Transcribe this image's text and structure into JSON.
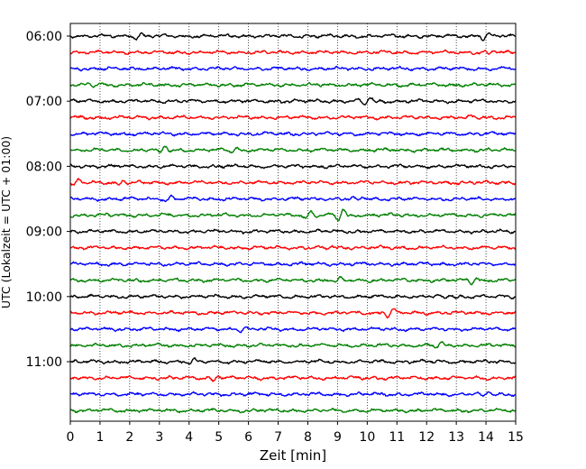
{
  "chart_data": {
    "type": "line",
    "xlabel": "Zeit  [min]",
    "ylabel": "UTC (Lokalzeit = UTC + 01:00)",
    "xlim": [
      0,
      15
    ],
    "x_ticks": [
      "0",
      "1",
      "2",
      "3",
      "4",
      "5",
      "6",
      "7",
      "8",
      "9",
      "10",
      "11",
      "12",
      "13",
      "14",
      "15"
    ],
    "y_ticks": [
      "06:00",
      "07:00",
      "08:00",
      "09:00",
      "10:00",
      "11:00"
    ],
    "y_tick_rows": [
      0,
      4,
      8,
      12,
      16,
      20
    ],
    "row_count": 24,
    "row_interval_minutes": 15,
    "grid_x": true,
    "grid_style": "dotted",
    "colors": [
      "#000000",
      "#ff0000",
      "#0000ff",
      "#008000"
    ],
    "rows": [
      {
        "start": "06:00",
        "color": "#000000",
        "events": [
          {
            "t": 2.3,
            "amp": 0.5
          },
          {
            "t": 14.0,
            "amp": 0.6
          }
        ]
      },
      {
        "start": "06:15",
        "color": "#ff0000",
        "events": [
          {
            "t": 14.2,
            "amp": 0.4
          }
        ]
      },
      {
        "start": "06:30",
        "color": "#0000ff",
        "events": []
      },
      {
        "start": "06:45",
        "color": "#008000",
        "events": [
          {
            "t": 0.9,
            "amp": 0.35
          }
        ]
      },
      {
        "start": "07:00",
        "color": "#000000",
        "events": [
          {
            "t": 10.0,
            "amp": 0.9
          }
        ]
      },
      {
        "start": "07:15",
        "color": "#ff0000",
        "events": [
          {
            "t": 13.4,
            "amp": 0.4
          }
        ]
      },
      {
        "start": "07:30",
        "color": "#0000ff",
        "events": []
      },
      {
        "start": "07:45",
        "color": "#008000",
        "events": [
          {
            "t": 3.1,
            "amp": 0.8
          },
          {
            "t": 5.5,
            "amp": 0.4
          }
        ]
      },
      {
        "start": "08:00",
        "color": "#000000",
        "events": []
      },
      {
        "start": "08:15",
        "color": "#ff0000",
        "events": [
          {
            "t": 0.2,
            "amp": 0.6
          },
          {
            "t": 1.7,
            "amp": 0.5
          }
        ]
      },
      {
        "start": "08:30",
        "color": "#0000ff",
        "events": [
          {
            "t": 3.3,
            "amp": 0.5
          },
          {
            "t": 9.8,
            "amp": 0.4
          }
        ]
      },
      {
        "start": "08:45",
        "color": "#008000",
        "events": [
          {
            "t": 8.0,
            "amp": 0.8
          },
          {
            "t": 9.1,
            "amp": 1.2
          }
        ]
      },
      {
        "start": "09:00",
        "color": "#000000",
        "events": []
      },
      {
        "start": "09:15",
        "color": "#ff0000",
        "events": [
          {
            "t": 8.7,
            "amp": 0.35
          }
        ]
      },
      {
        "start": "09:30",
        "color": "#0000ff",
        "events": []
      },
      {
        "start": "09:45",
        "color": "#008000",
        "events": [
          {
            "t": 9.0,
            "amp": 0.5
          },
          {
            "t": 13.6,
            "amp": 0.6
          }
        ]
      },
      {
        "start": "10:00",
        "color": "#000000",
        "events": [
          {
            "t": 12.7,
            "amp": 0.5
          }
        ]
      },
      {
        "start": "10:15",
        "color": "#ff0000",
        "events": [
          {
            "t": 10.8,
            "amp": 0.8
          }
        ]
      },
      {
        "start": "10:30",
        "color": "#0000ff",
        "events": [
          {
            "t": 5.8,
            "amp": 0.4
          }
        ]
      },
      {
        "start": "10:45",
        "color": "#008000",
        "events": [
          {
            "t": 12.4,
            "amp": 0.5
          }
        ]
      },
      {
        "start": "11:00",
        "color": "#000000",
        "events": [
          {
            "t": 4.1,
            "amp": 0.4
          }
        ]
      },
      {
        "start": "11:15",
        "color": "#ff0000",
        "events": [
          {
            "t": 4.9,
            "amp": 0.6
          }
        ]
      },
      {
        "start": "11:30",
        "color": "#0000ff",
        "events": [
          {
            "t": 14.0,
            "amp": 0.6
          }
        ]
      },
      {
        "start": "11:45",
        "color": "#008000",
        "events": []
      }
    ]
  }
}
